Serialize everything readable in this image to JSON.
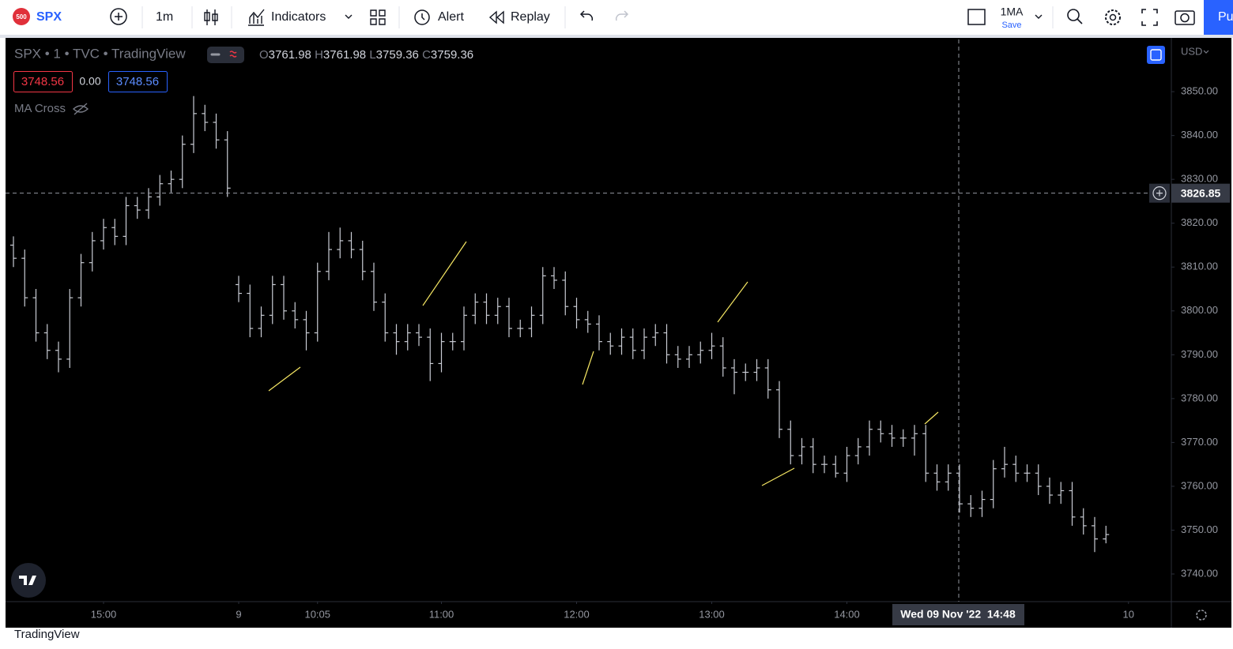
{
  "toolbar": {
    "symbol_badge": "500",
    "symbol": "SPX",
    "interval": "1m",
    "indicators": "Indicators",
    "alert": "Alert",
    "replay": "Replay",
    "layout_name": "1MA",
    "save": "Save",
    "publish": "Pu"
  },
  "legend": {
    "title": "SPX • 1 • TVC • TradingView",
    "o_label": "O",
    "open": "3761.98",
    "h_label": "H",
    "high": "3761.98",
    "l_label": "L",
    "low": "3759.36",
    "c_label": "C",
    "close": "3759.36",
    "bid": "3748.56",
    "spread": "0.00",
    "ask": "3748.56",
    "indicator": "MA Cross"
  },
  "chart_data": {
    "type": "ohlc",
    "currency": "USD",
    "color": "#c9ccd4",
    "open": [
      3815,
      3812,
      3803,
      3795,
      3791,
      3789,
      3803,
      3811,
      3816,
      3819,
      3817,
      3824,
      3823,
      3826,
      3829,
      3830,
      3838,
      3845,
      3843,
      3839,
      3806,
      3804,
      3796,
      3799,
      3806,
      3800,
      3798,
      3795,
      3809,
      3814,
      3816,
      3814,
      3809,
      3802,
      3795,
      3793,
      3795,
      3794,
      3788,
      3793,
      3793,
      3799,
      3802,
      3799,
      3801,
      3796,
      3796,
      3799,
      3808,
      3807,
      3801,
      3798,
      3797,
      3793,
      3792,
      3794,
      3791,
      3794,
      3795,
      3790,
      3789,
      3790,
      3791,
      3792,
      3787,
      3786,
      3786,
      3787,
      3782,
      3773,
      3767,
      3769,
      3765,
      3765,
      3763,
      3767,
      3769,
      3773,
      3772,
      3771,
      3771,
      3772,
      3763,
      3761,
      3763,
      3756,
      3755,
      3757,
      3764,
      3765,
      3763,
      3763,
      3760,
      3758,
      3759,
      3753,
      3751,
      3748
    ],
    "high": [
      3817,
      3814,
      3805,
      3797,
      3793,
      3805,
      3813,
      3818,
      3821,
      3821,
      3826,
      3826,
      3828,
      3831,
      3832,
      3840,
      3849,
      3847,
      3845,
      3841,
      3808,
      3806,
      3801,
      3808,
      3808,
      3802,
      3800,
      3811,
      3818,
      3819,
      3818,
      3816,
      3811,
      3804,
      3797,
      3797,
      3797,
      3796,
      3795,
      3795,
      3801,
      3804,
      3804,
      3803,
      3803,
      3798,
      3801,
      3810,
      3810,
      3809,
      3803,
      3800,
      3799,
      3795,
      3796,
      3796,
      3796,
      3797,
      3797,
      3792,
      3792,
      3793,
      3795,
      3794,
      3789,
      3788,
      3789,
      3789,
      3784,
      3775,
      3771,
      3771,
      3767,
      3767,
      3769,
      3771,
      3775,
      3775,
      3774,
      3773,
      3774,
      3774,
      3765,
      3765,
      3765,
      3758,
      3759,
      3766,
      3769,
      3767,
      3765,
      3765,
      3762,
      3761,
      3761,
      3755,
      3753,
      3751
    ],
    "low": [
      3810,
      3801,
      3793,
      3789,
      3786,
      3787,
      3801,
      3809,
      3814,
      3815,
      3815,
      3821,
      3821,
      3824,
      3827,
      3828,
      3836,
      3841,
      3837,
      3826,
      3802,
      3794,
      3794,
      3797,
      3798,
      3796,
      3791,
      3793,
      3807,
      3812,
      3812,
      3807,
      3800,
      3793,
      3790,
      3791,
      3792,
      3784,
      3786,
      3791,
      3791,
      3797,
      3797,
      3797,
      3794,
      3794,
      3794,
      3797,
      3805,
      3799,
      3796,
      3795,
      3791,
      3790,
      3790,
      3789,
      3789,
      3792,
      3788,
      3787,
      3787,
      3788,
      3789,
      3785,
      3781,
      3784,
      3784,
      3780,
      3771,
      3765,
      3765,
      3763,
      3763,
      3762,
      3761,
      3765,
      3767,
      3770,
      3769,
      3769,
      3767,
      3761,
      3759,
      3759,
      3754,
      3753,
      3753,
      3755,
      3762,
      3761,
      3761,
      3758,
      3756,
      3756,
      3751,
      3749,
      3745,
      3747
    ],
    "close": [
      3812,
      3803,
      3795,
      3791,
      3789,
      3803,
      3811,
      3816,
      3819,
      3817,
      3824,
      3823,
      3826,
      3829,
      3830,
      3838,
      3845,
      3843,
      3839,
      3828,
      3804,
      3796,
      3799,
      3806,
      3800,
      3798,
      3795,
      3809,
      3814,
      3816,
      3814,
      3809,
      3802,
      3795,
      3793,
      3795,
      3794,
      3788,
      3793,
      3793,
      3799,
      3802,
      3799,
      3801,
      3796,
      3796,
      3799,
      3808,
      3807,
      3801,
      3798,
      3797,
      3793,
      3792,
      3794,
      3791,
      3794,
      3795,
      3790,
      3789,
      3790,
      3791,
      3792,
      3787,
      3786,
      3786,
      3787,
      3782,
      3773,
      3767,
      3769,
      3765,
      3765,
      3763,
      3767,
      3769,
      3773,
      3772,
      3771,
      3771,
      3772,
      3763,
      3761,
      3763,
      3756,
      3755,
      3757,
      3764,
      3765,
      3763,
      3763,
      3760,
      3758,
      3759,
      3753,
      3751,
      3748,
      3749
    ],
    "ylim": [
      3733.7,
      3861.9
    ],
    "yticks": [
      {
        "value": 3740,
        "label": "3740.00"
      },
      {
        "value": 3750,
        "label": "3750.00"
      },
      {
        "value": 3760,
        "label": "3760.00"
      },
      {
        "value": 3770,
        "label": "3770.00"
      },
      {
        "value": 3780,
        "label": "3780.00"
      },
      {
        "value": 3790,
        "label": "3790.00"
      },
      {
        "value": 3800,
        "label": "3800.00"
      },
      {
        "value": 3810,
        "label": "3810.00"
      },
      {
        "value": 3820,
        "label": "3820.00"
      },
      {
        "value": 3830,
        "label": "3830.00"
      },
      {
        "value": 3840,
        "label": "3840.00"
      },
      {
        "value": 3850,
        "label": "3850.00"
      }
    ],
    "xticks": [
      {
        "value": 8,
        "label": "15:00"
      },
      {
        "value": 20,
        "label": "9"
      },
      {
        "value": 27,
        "label": "10:05"
      },
      {
        "value": 38,
        "label": "11:00"
      },
      {
        "value": 50,
        "label": "12:00"
      },
      {
        "value": 62,
        "label": "13:00"
      },
      {
        "value": 74,
        "label": "14:00"
      },
      {
        "value": 99,
        "label": "10"
      }
    ],
    "grid": false,
    "crosshair_price": 3826.85,
    "crosshair_time": "Wed 09 Nov '22  14:48"
  },
  "footer": {
    "brand": "TradingView"
  }
}
